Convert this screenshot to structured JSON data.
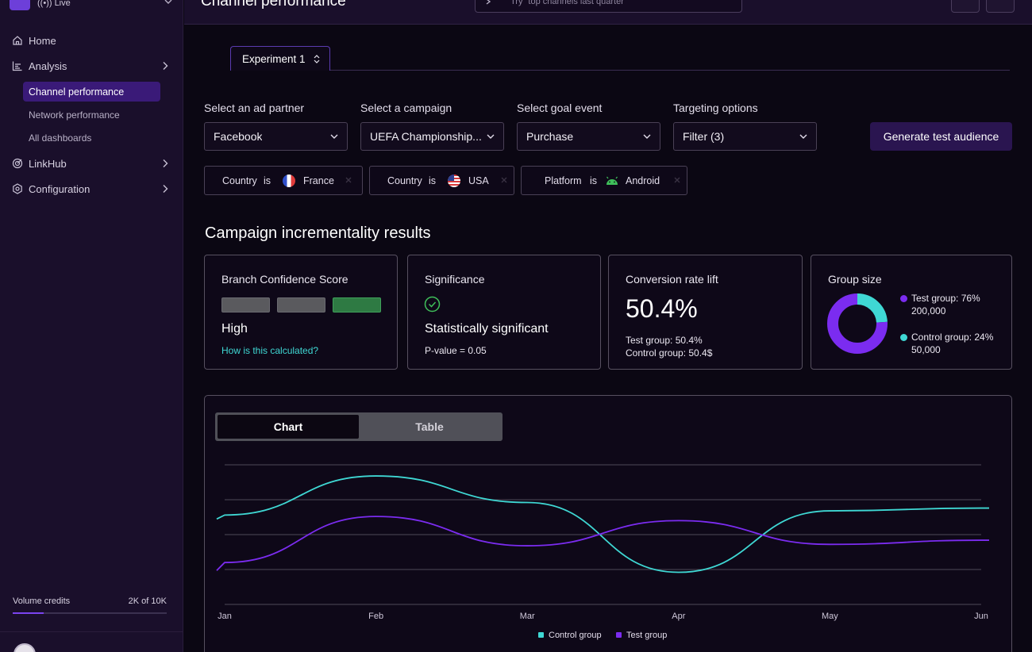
{
  "sidebar": {
    "workspace_status": "Live",
    "nav": [
      {
        "label": "Home"
      },
      {
        "label": "Analysis"
      },
      {
        "label": "LinkHub"
      },
      {
        "label": "Configuration"
      }
    ],
    "analysis_sub": [
      {
        "label": "Channel performance",
        "active": true
      },
      {
        "label": "Network performance"
      },
      {
        "label": "All dashboards"
      }
    ],
    "credits": {
      "label": "Volume credits",
      "value": "2K of 10K",
      "fill_fraction": 0.2
    }
  },
  "header": {
    "title": "Channel performance",
    "search_placeholder": "Try \"top channels last quarter\""
  },
  "experiment_tab": {
    "label": "Experiment 1"
  },
  "filters": {
    "ad_partner": {
      "label": "Select an ad partner",
      "value": "Facebook"
    },
    "campaign": {
      "label": "Select a campaign",
      "value": "UEFA Championship..."
    },
    "goal_event": {
      "label": "Select goal event",
      "value": "Purchase"
    },
    "targeting": {
      "label": "Targeting options",
      "value": "Filter (3)"
    },
    "generate_label": "Generate test audience",
    "chips": [
      {
        "field": "Country",
        "op": "is",
        "value": "France"
      },
      {
        "field": "Country",
        "op": "is",
        "value": "USA"
      },
      {
        "field": "Platform",
        "op": "is",
        "value": "Android"
      }
    ]
  },
  "results": {
    "title": "Campaign incrementality results",
    "confidence": {
      "title": "Branch Confidence Score",
      "level": "High",
      "link": "How is this calculated?",
      "bar_colors": [
        "#5a5a5e",
        "#5a5a5e",
        "#2e7a43"
      ]
    },
    "significance": {
      "title": "Significance",
      "status": "Statistically significant",
      "pvalue": "P-value = 0.05"
    },
    "lift": {
      "title": "Conversion rate lift",
      "value": "50.4%",
      "test": "Test group: 50.4%",
      "control": "Control group: 50.4$"
    },
    "group_size": {
      "title": "Group size",
      "test": {
        "label": "Test group: 76%",
        "count": "200,000",
        "percent": 76,
        "color": "#7b2cf0"
      },
      "control": {
        "label": "Control group: 24%",
        "count": "50,000",
        "percent": 24,
        "color": "#3fd8d4"
      }
    }
  },
  "view_toggle": {
    "chart": "Chart",
    "table": "Table",
    "selected": "Chart"
  },
  "chart_data": {
    "type": "line",
    "categories": [
      "Jan",
      "Feb",
      "Mar",
      "Apr",
      "May",
      "Jun"
    ],
    "series": [
      {
        "name": "Control group",
        "color": "#3fd8d4",
        "values": [
          6.4,
          9.2,
          7.3,
          2.3,
          6.7,
          6.9
        ]
      },
      {
        "name": "Test group",
        "color": "#7b2cf0",
        "values": [
          3.0,
          6.3,
          4.2,
          6.0,
          4.3,
          4.6
        ]
      }
    ],
    "ylim": [
      0,
      10
    ],
    "grid": true,
    "legend": "bottom-center"
  }
}
